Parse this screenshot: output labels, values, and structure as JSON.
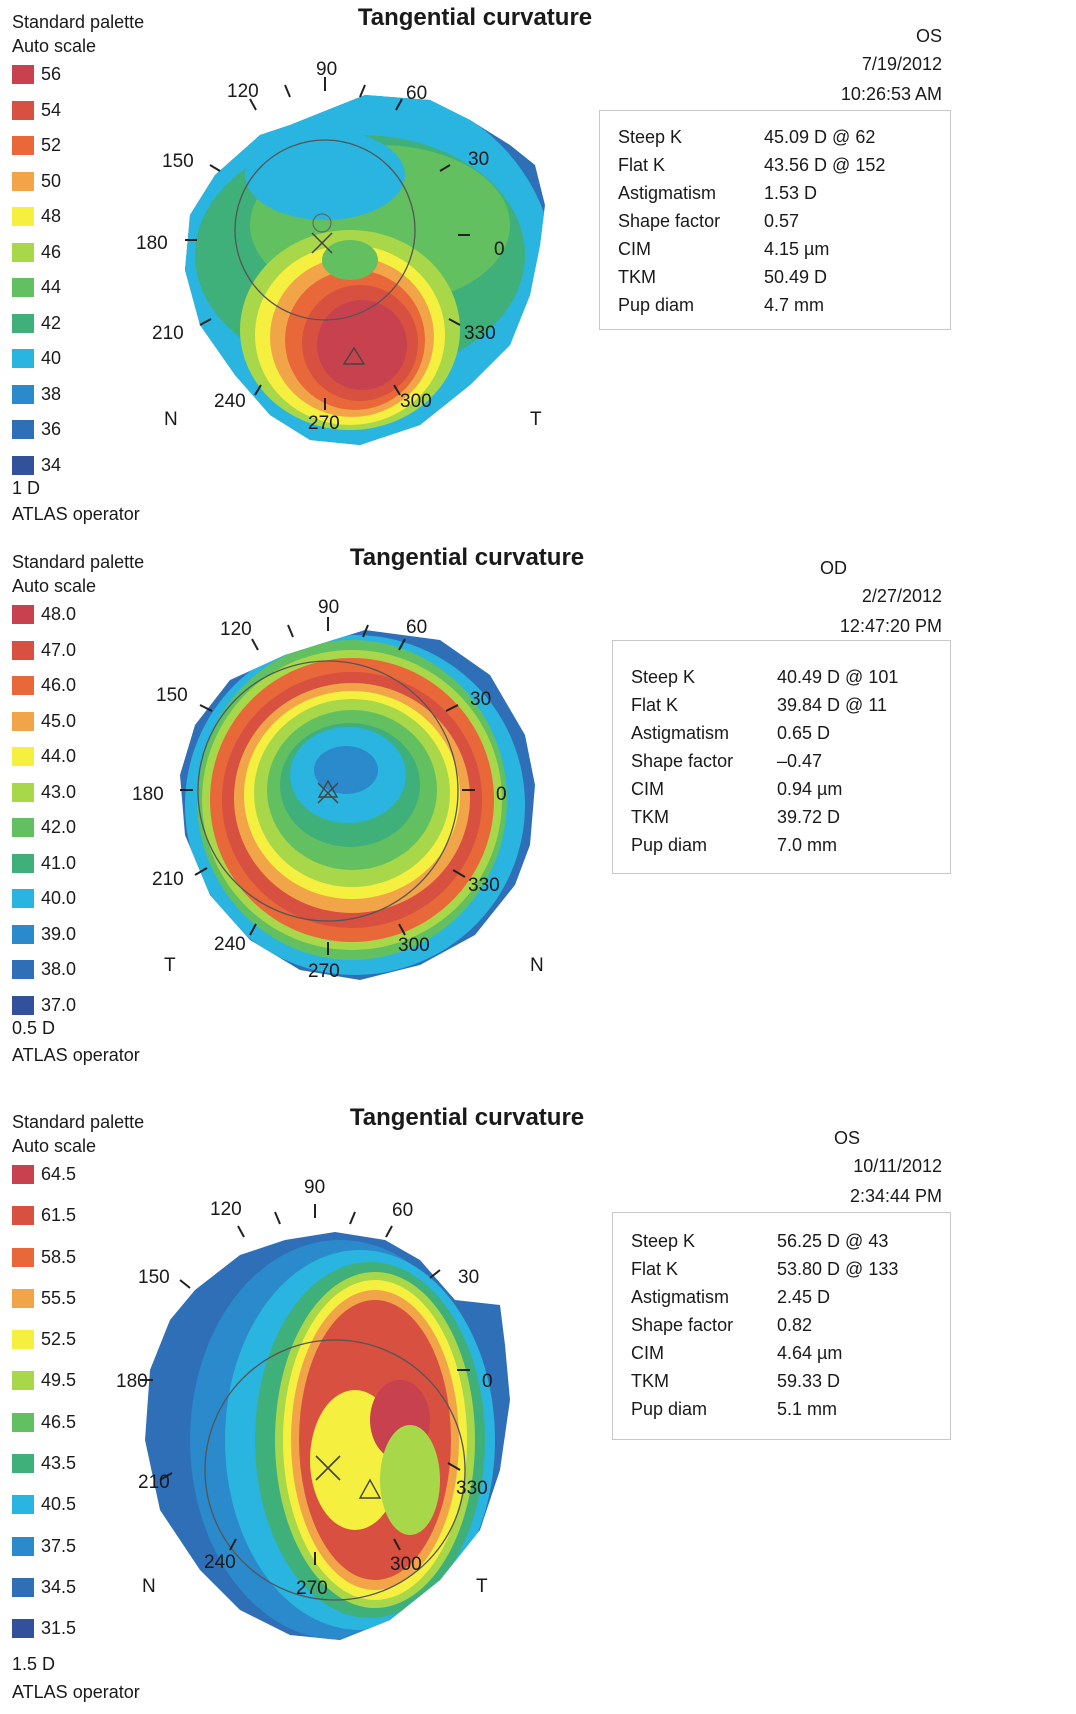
{
  "panels": [
    {
      "palette": "Standard palette",
      "scale_mode": "Auto scale",
      "title": "Tangential curvature",
      "eye": "OS",
      "date": "7/19/2012",
      "time": "10:26:53 AM",
      "legend": [
        "56",
        "54",
        "52",
        "50",
        "48",
        "46",
        "44",
        "42",
        "40",
        "38",
        "36",
        "34"
      ],
      "step": "1 D",
      "operator": "ATLAS operator",
      "angle_labels": {
        "a90": "90",
        "a120": "120",
        "a60": "60",
        "a150": "150",
        "a30": "30",
        "a180": "180",
        "a0": "0",
        "a210": "210",
        "a330": "330",
        "a240": "240",
        "a300": "300",
        "a270": "270"
      },
      "corner_left": "N",
      "corner_right": "T",
      "metrics": [
        {
          "label": "Steep K",
          "value": "45.09 D @ 62"
        },
        {
          "label": "Flat K",
          "value": "43.56 D @ 152"
        },
        {
          "label": "Astigmatism",
          "value": "1.53 D"
        },
        {
          "label": "Shape factor",
          "value": "0.57"
        },
        {
          "label": "CIM",
          "value": "4.15 µm"
        },
        {
          "label": "TKM",
          "value": "50.49 D"
        },
        {
          "label": "Pup diam",
          "value": "4.7 mm"
        }
      ]
    },
    {
      "palette": "Standard palette",
      "scale_mode": "Auto scale",
      "title": "Tangential curvature",
      "eye": "OD",
      "date": "2/27/2012",
      "time": "12:47:20 PM",
      "legend": [
        "48.0",
        "47.0",
        "46.0",
        "45.0",
        "44.0",
        "43.0",
        "42.0",
        "41.0",
        "40.0",
        "39.0",
        "38.0",
        "37.0"
      ],
      "step": "0.5 D",
      "operator": "ATLAS operator",
      "angle_labels": {
        "a90": "90",
        "a120": "120",
        "a60": "60",
        "a150": "150",
        "a30": "30",
        "a180": "180",
        "a0": "0",
        "a210": "210",
        "a330": "330",
        "a240": "240",
        "a300": "300",
        "a270": "270"
      },
      "corner_left": "T",
      "corner_right": "N",
      "metrics": [
        {
          "label": "Steep K",
          "value": "40.49 D @ 101"
        },
        {
          "label": "Flat K",
          "value": "39.84 D @ 11"
        },
        {
          "label": "Astigmatism",
          "value": "0.65 D"
        },
        {
          "label": "Shape factor",
          "value": "–0.47"
        },
        {
          "label": "CIM",
          "value": "0.94 µm"
        },
        {
          "label": "TKM",
          "value": "39.72 D"
        },
        {
          "label": "Pup diam",
          "value": "7.0 mm"
        }
      ]
    },
    {
      "palette": "Standard palette",
      "scale_mode": "Auto scale",
      "title": "Tangential curvature",
      "eye": "OS",
      "date": "10/11/2012",
      "time": "2:34:44 PM",
      "legend": [
        "64.5",
        "61.5",
        "58.5",
        "55.5",
        "52.5",
        "49.5",
        "46.5",
        "43.5",
        "40.5",
        "37.5",
        "34.5",
        "31.5"
      ],
      "step": "1.5 D",
      "operator": "ATLAS operator",
      "angle_labels": {
        "a90": "90",
        "a120": "120",
        "a60": "60",
        "a150": "150",
        "a30": "30",
        "a180": "180",
        "a0": "0",
        "a210": "210",
        "a330": "330",
        "a240": "240",
        "a300": "300",
        "a270": "270"
      },
      "corner_left": "N",
      "corner_right": "T",
      "metrics": [
        {
          "label": "Steep K",
          "value": "56.25 D @ 43"
        },
        {
          "label": "Flat K",
          "value": "53.80 D @ 133"
        },
        {
          "label": "Astigmatism",
          "value": "2.45 D"
        },
        {
          "label": "Shape factor",
          "value": "0.82"
        },
        {
          "label": "CIM",
          "value": "4.64 µm"
        },
        {
          "label": "TKM",
          "value": "59.33 D"
        },
        {
          "label": "Pup diam",
          "value": "5.1 mm"
        }
      ]
    }
  ],
  "palette_colors": [
    "#c8414f",
    "#d8503f",
    "#e8683a",
    "#f2a548",
    "#f5f040",
    "#a8d84a",
    "#62c060",
    "#3fb07a",
    "#2ab4e0",
    "#2a8acc",
    "#2f6fb8",
    "#33509a"
  ]
}
